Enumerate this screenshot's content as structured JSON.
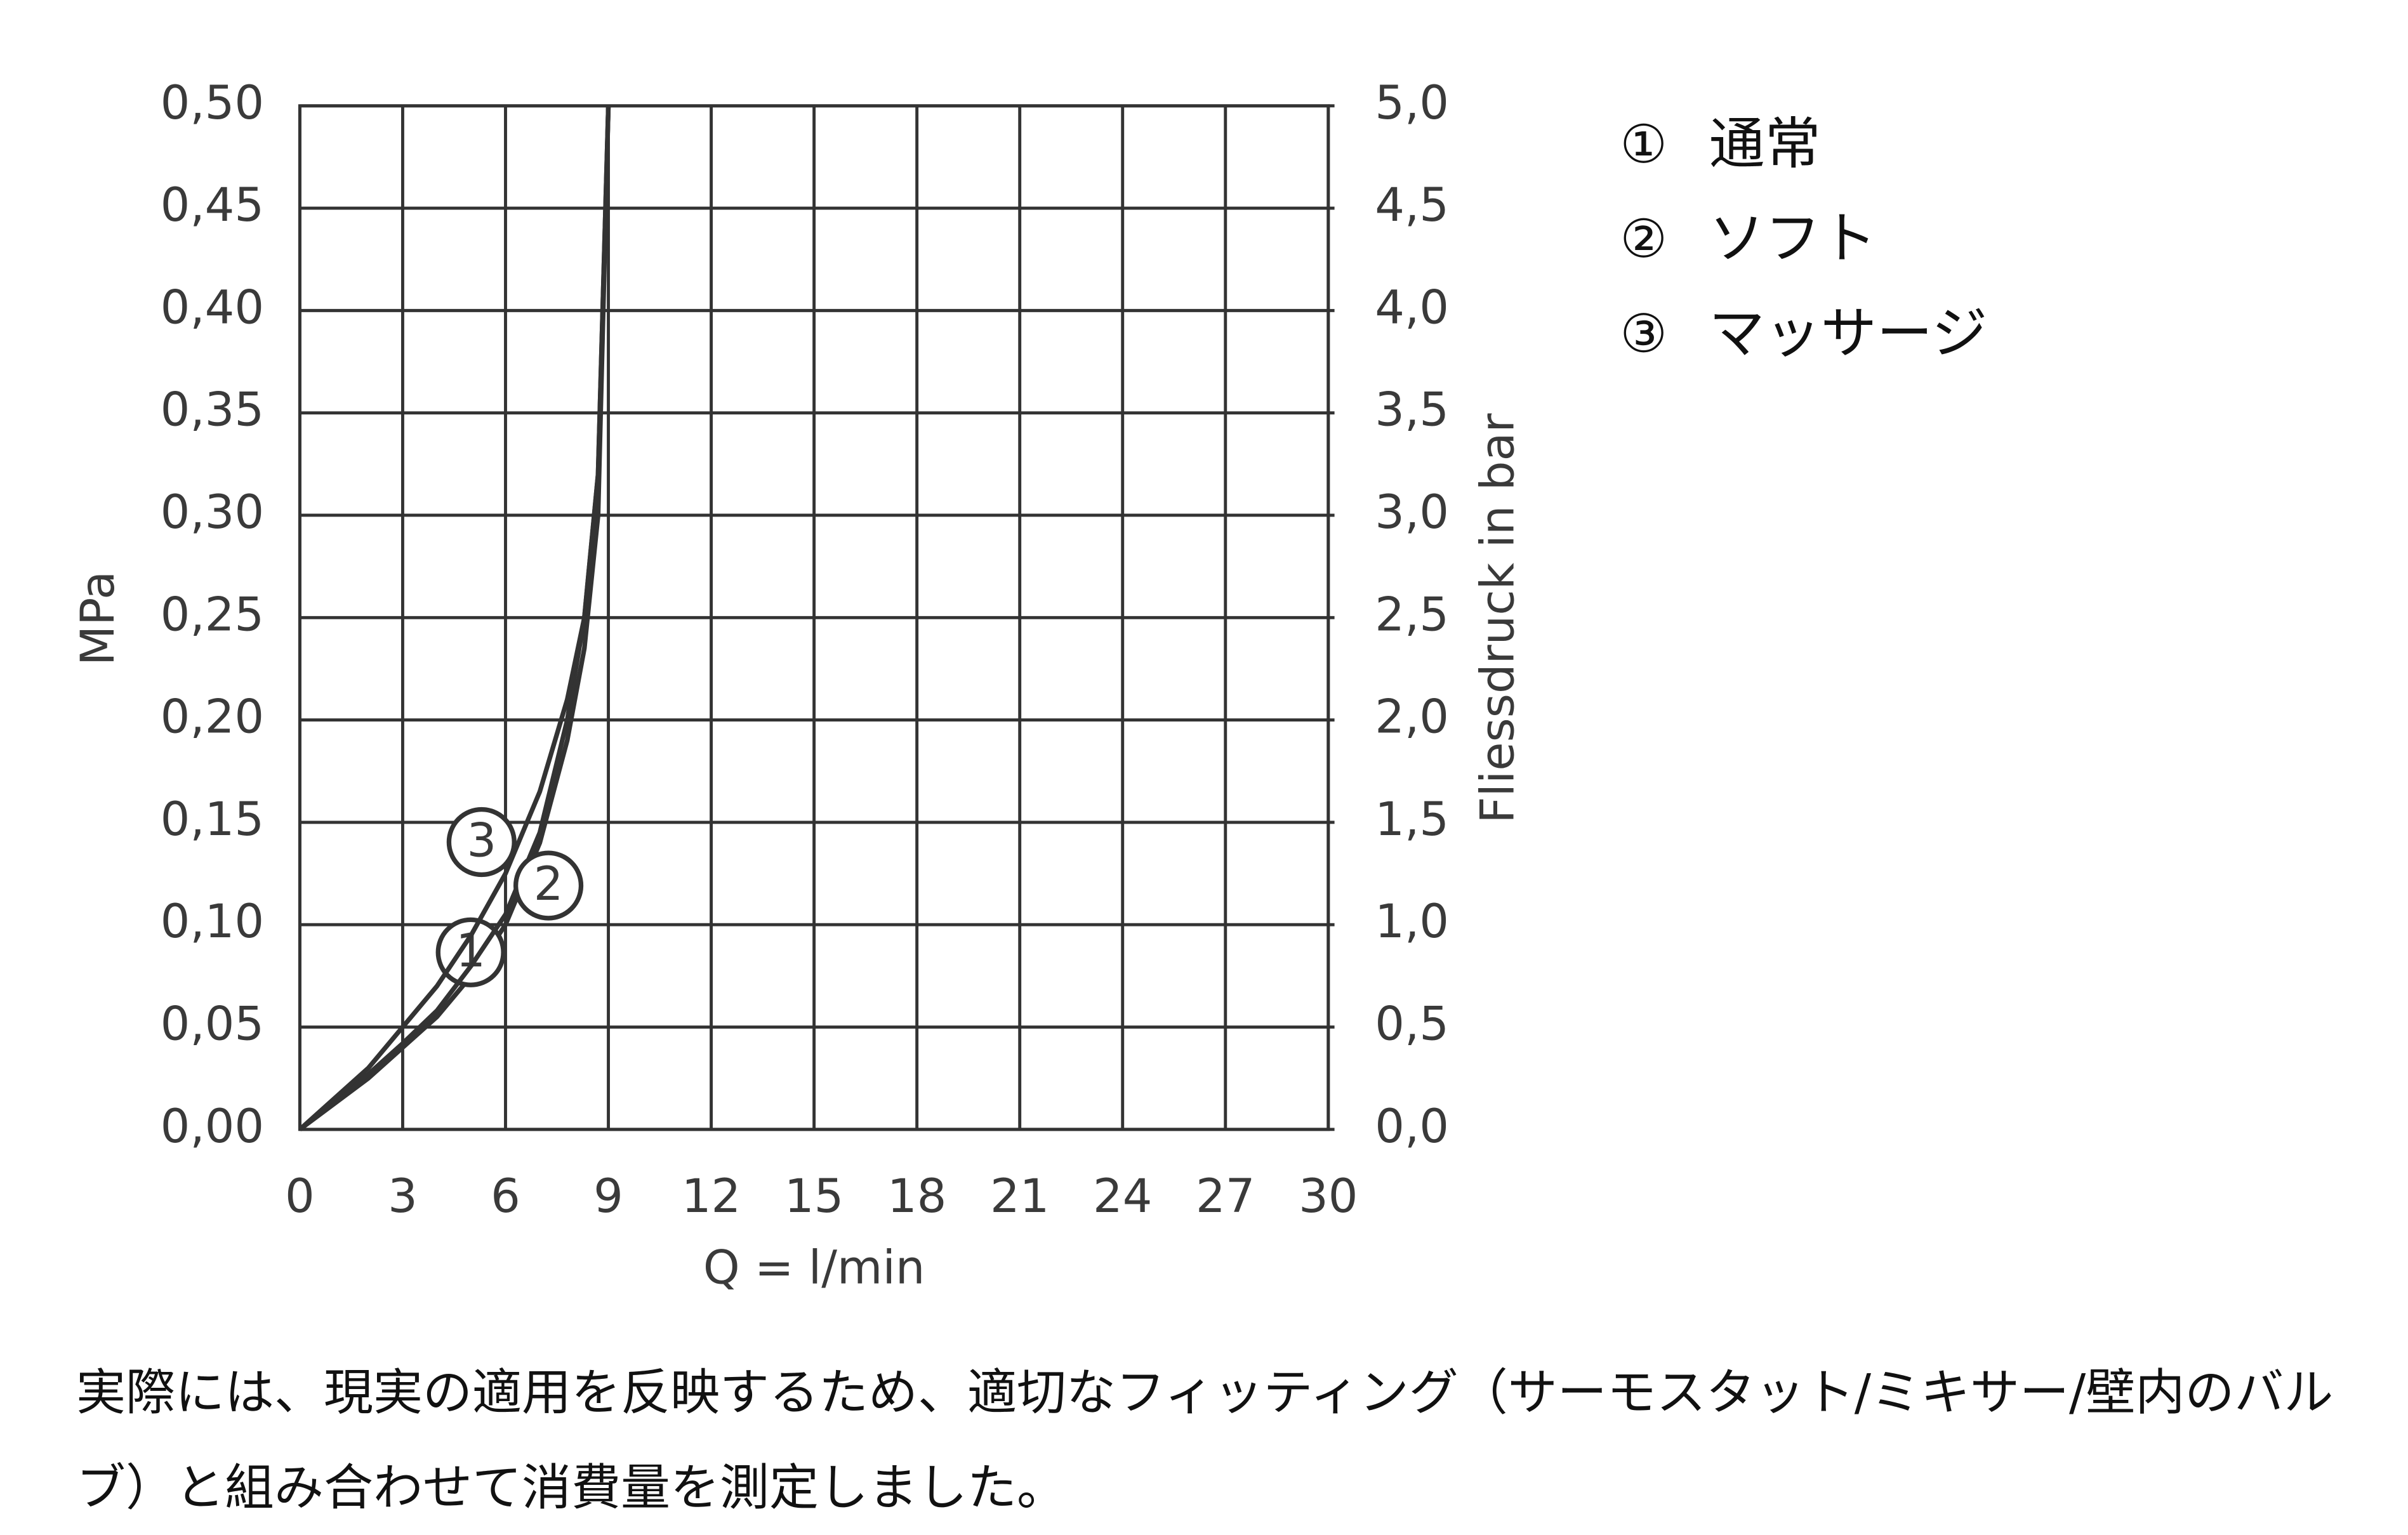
{
  "chart_data": {
    "type": "line",
    "x_label": "Q = l/min",
    "y_label": "MPa",
    "y2_label": "Fliessdruck in bar",
    "xlim": [
      0,
      30
    ],
    "xticks": [
      0,
      3,
      6,
      9,
      12,
      15,
      18,
      21,
      24,
      27,
      30
    ],
    "ylim": [
      0,
      0.5
    ],
    "yticks": [
      {
        "value": 0,
        "label": "0,00"
      },
      {
        "value": 0.05,
        "label": "0,05"
      },
      {
        "value": 0.1,
        "label": "0,10"
      },
      {
        "value": 0.15,
        "label": "0,15"
      },
      {
        "value": 0.2,
        "label": "0,20"
      },
      {
        "value": 0.25,
        "label": "0,25"
      },
      {
        "value": 0.3,
        "label": "0,30"
      },
      {
        "value": 0.35,
        "label": "0,35"
      },
      {
        "value": 0.4,
        "label": "0,40"
      },
      {
        "value": 0.45,
        "label": "0,45"
      },
      {
        "value": 0.5,
        "label": "0,50"
      }
    ],
    "y2lim": [
      0,
      5
    ],
    "y2ticks": [
      {
        "value": 0,
        "label": "0,0"
      },
      {
        "value": 0.5,
        "label": "0,5"
      },
      {
        "value": 1,
        "label": "1,0"
      },
      {
        "value": 1.5,
        "label": "1,5"
      },
      {
        "value": 2,
        "label": "2,0"
      },
      {
        "value": 2.5,
        "label": "2,5"
      },
      {
        "value": 3,
        "label": "3,0"
      },
      {
        "value": 3.5,
        "label": "3,5"
      },
      {
        "value": 4,
        "label": "4,0"
      },
      {
        "value": 4.5,
        "label": "4,5"
      },
      {
        "value": 5,
        "label": "5,0"
      }
    ],
    "grid": true,
    "x": [
      0,
      2,
      3,
      4,
      5,
      6,
      7,
      7.8,
      8.3,
      8.7,
      9
    ],
    "series": [
      {
        "name": "通常",
        "legend_symbol": "①",
        "label": "1",
        "color": "#333333",
        "values": [
          0,
          0.025,
          0.04,
          0.055,
          0.075,
          0.1,
          0.14,
          0.19,
          0.235,
          0.3,
          0.5
        ]
      },
      {
        "name": "ソフト",
        "legend_symbol": "②",
        "label": "2",
        "color": "#333333",
        "values": [
          0,
          0.027,
          0.042,
          0.058,
          0.08,
          0.105,
          0.145,
          0.2,
          0.25,
          0.32,
          0.5
        ]
      },
      {
        "name": "マッサージ",
        "legend_symbol": "③",
        "label": "3",
        "color": "#333333",
        "values": [
          0,
          0.03,
          0.05,
          0.07,
          0.095,
          0.125,
          0.165,
          0.21,
          0.25,
          0.32,
          0.5
        ]
      }
    ],
    "note": "実際には、現実の適用を反映するため、適切なフィッティング（サーモスタット/ミキサー/壁内のバルブ）と組み合わせて消費量を測定しました。"
  }
}
